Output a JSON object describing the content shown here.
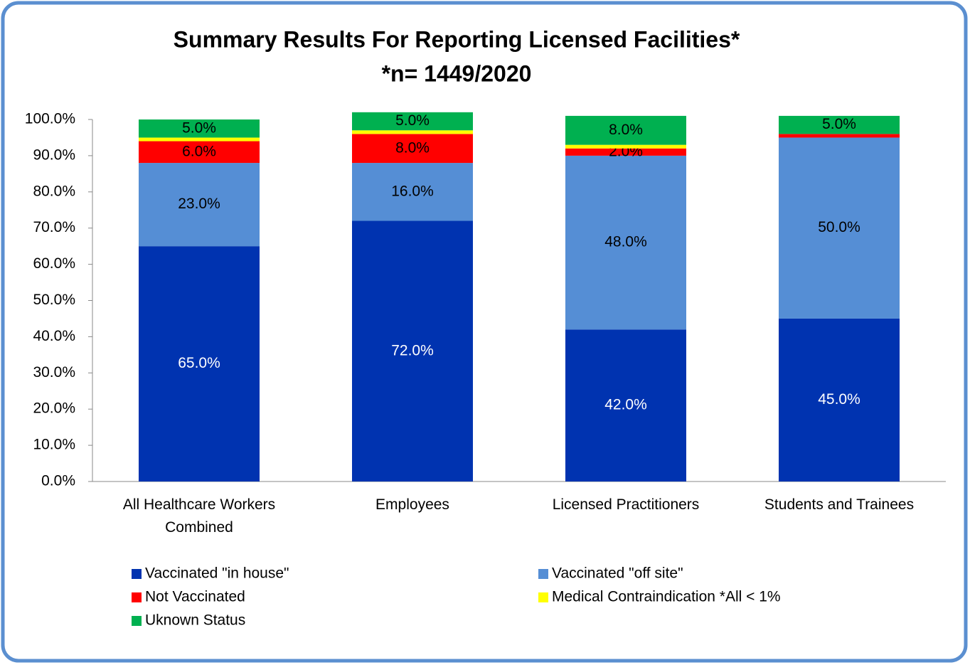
{
  "chart_data": {
    "type": "stacked_bar",
    "title": [
      "Summary Results For Reporting Licensed Facilities*",
      "*n= 1449/2020"
    ],
    "categories": [
      "All Healthcare Workers Combined",
      "Employees",
      "Licensed Practitioners",
      "Students and Trainees"
    ],
    "series": [
      {
        "name": "Vaccinated \"in house\"",
        "color": "#0033b0",
        "values": [
          65,
          72,
          42,
          45
        ],
        "value_labels": [
          "65.0%",
          "72.0%",
          "42.0%",
          "45.0%"
        ]
      },
      {
        "name": "Vaccinated \"off site\"",
        "color": "#558ed5",
        "values": [
          23,
          16,
          48,
          50
        ],
        "value_labels": [
          "23.0%",
          "16.0%",
          "48.0%",
          "50.0%"
        ]
      },
      {
        "name": "Not Vaccinated",
        "color": "#ff0000",
        "values": [
          6,
          8,
          2,
          1
        ],
        "value_labels": [
          "6.0%",
          "8.0%",
          "2.0%",
          null
        ]
      },
      {
        "name": "Medical Contraindication *All < 1%",
        "color": "#ffff00",
        "values": [
          1,
          1,
          1,
          0
        ]
      },
      {
        "name": "Uknown Status",
        "color": "#00b050",
        "values": [
          5,
          5,
          8,
          5
        ],
        "value_labels": [
          "5.0%",
          "5.0%",
          "8.0%",
          "5.0%"
        ]
      }
    ],
    "ylim": [
      0,
      100
    ],
    "yticks": [
      {
        "value": 0,
        "label": "0.0%"
      },
      {
        "value": 10,
        "label": "10.0%"
      },
      {
        "value": 20,
        "label": "20.0%"
      },
      {
        "value": 30,
        "label": "30.0%"
      },
      {
        "value": 40,
        "label": "40.0%"
      },
      {
        "value": 50,
        "label": "50.0%"
      },
      {
        "value": 60,
        "label": "60.0%"
      },
      {
        "value": 70,
        "label": "70.0%"
      },
      {
        "value": 80,
        "label": "80.0%"
      },
      {
        "value": 90,
        "label": "90.0%"
      },
      {
        "value": 100,
        "label": "100.0%"
      }
    ],
    "grid": false
  }
}
